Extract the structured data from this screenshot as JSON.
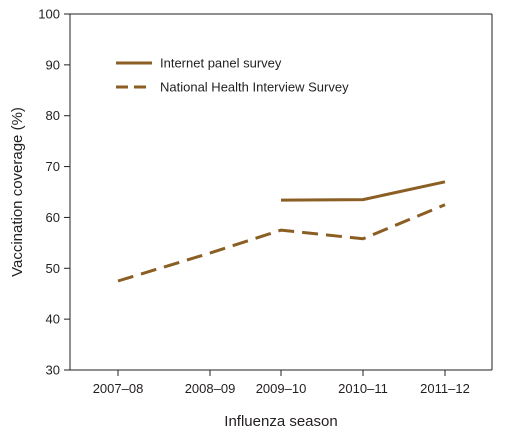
{
  "chart_data": {
    "type": "line",
    "xlabel": "Influenza season",
    "ylabel": "Vaccination coverage (%)",
    "ylim": [
      30,
      100
    ],
    "yticks": [
      30,
      40,
      50,
      60,
      70,
      80,
      90,
      100
    ],
    "categories": [
      "2007–08",
      "2008–09",
      "2009–10",
      "2010–11",
      "2011–12"
    ],
    "grid": false,
    "legend_position": "top-left",
    "series": [
      {
        "name": "Internet panel survey",
        "style": "solid",
        "color": "#8b5e24",
        "values": [
          null,
          null,
          63.4,
          63.5,
          67
        ]
      },
      {
        "name": "National Health Interview Survey",
        "style": "dashed",
        "color": "#8b5e24",
        "values": [
          47.5,
          53,
          57.5,
          55.8,
          62.5
        ]
      }
    ]
  }
}
